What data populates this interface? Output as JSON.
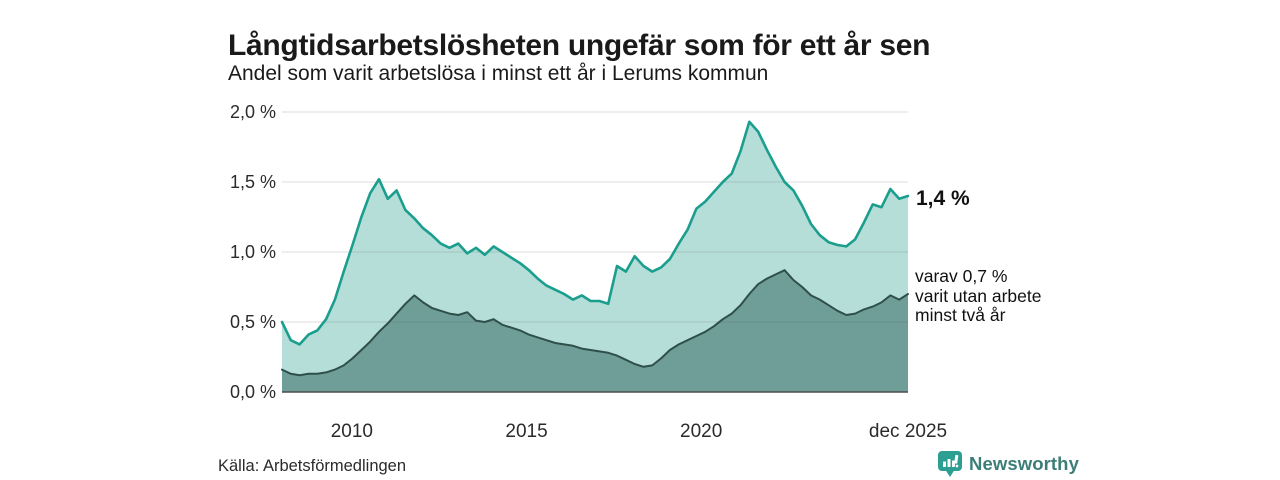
{
  "header": {
    "title": "Långtidsarbetslösheten ungefär som för ett år sen",
    "subtitle": "Andel som varit arbetslösa i minst ett år i Lerums kommun"
  },
  "annotations": {
    "value_label": "1,4 %",
    "sub_label": "varav 0,7 %\nvarit utan arbete\nminst två år"
  },
  "footer": {
    "source": "Källa: Arbetsförmedlingen",
    "brand": "Newsworthy"
  },
  "colors": {
    "line_1yr": "#1b9e8e",
    "fill_1yr": "#b6ded8",
    "line_2yr": "#2f4f4b",
    "fill_2yr": "#6f9e99",
    "gridline": "rgba(70,70,70,0.18)",
    "axis_line": "#4d4d4d",
    "brand_teal": "#3c7e77",
    "badge_teal": "#2d9f92"
  },
  "chart_data": {
    "type": "area",
    "title": "Långtidsarbetslösheten ungefär som för ett år sen",
    "subtitle": "Andel som varit arbetslösa i minst ett år i Lerums kommun",
    "unit": "percent",
    "x_axis": {
      "start": 2008.0,
      "end": 2025.92,
      "ticks": [
        {
          "label": "2010",
          "t": 2010.0
        },
        {
          "label": "2015",
          "t": 2015.0
        },
        {
          "label": "2020",
          "t": 2020.0
        },
        {
          "label": "dec 2025",
          "t": 2025.92
        }
      ]
    },
    "y_axis": {
      "min": 0.0,
      "max": 2.0,
      "ticks": [
        {
          "label": "2,0 %",
          "value": 2.0
        },
        {
          "label": "1,5 %",
          "value": 1.5
        },
        {
          "label": "1,0 %",
          "value": 1.0
        },
        {
          "label": "0,5 %",
          "value": 0.5
        },
        {
          "label": "0,0 %",
          "value": 0.0
        }
      ]
    },
    "grid": true,
    "legend": "inline-right-annotations",
    "resolution": "quarterly",
    "series": [
      {
        "name": "Andel arbetslösa minst ett år",
        "end_label": "1,4 %",
        "stroke": "#1b9e8e",
        "fill": "#b6ded8",
        "stroke_width": 2.6,
        "values": [
          0.5,
          0.37,
          0.34,
          0.41,
          0.44,
          0.52,
          0.66,
          0.86,
          1.05,
          1.25,
          1.42,
          1.52,
          1.38,
          1.44,
          1.3,
          1.24,
          1.17,
          1.12,
          1.06,
          1.03,
          1.06,
          0.99,
          1.03,
          0.98,
          1.04,
          1.0,
          0.96,
          0.92,
          0.87,
          0.81,
          0.76,
          0.73,
          0.7,
          0.66,
          0.69,
          0.65,
          0.65,
          0.63,
          0.9,
          0.86,
          0.97,
          0.9,
          0.86,
          0.89,
          0.95,
          1.06,
          1.16,
          1.31,
          1.36,
          1.43,
          1.5,
          1.56,
          1.72,
          1.93,
          1.86,
          1.73,
          1.61,
          1.5,
          1.44,
          1.33,
          1.2,
          1.12,
          1.07,
          1.05,
          1.04,
          1.09,
          1.21,
          1.34,
          1.32,
          1.45,
          1.38,
          1.4
        ]
      },
      {
        "name": "varav arbetslösa minst två år",
        "end_label": "varav 0,7 % varit utan arbete minst två år",
        "stroke": "#2f4f4b",
        "fill": "#6f9e99",
        "stroke_width": 2.0,
        "values": [
          0.16,
          0.13,
          0.12,
          0.13,
          0.13,
          0.14,
          0.16,
          0.19,
          0.24,
          0.3,
          0.36,
          0.43,
          0.49,
          0.56,
          0.63,
          0.69,
          0.64,
          0.6,
          0.58,
          0.56,
          0.55,
          0.57,
          0.51,
          0.5,
          0.52,
          0.48,
          0.46,
          0.44,
          0.41,
          0.39,
          0.37,
          0.35,
          0.34,
          0.33,
          0.31,
          0.3,
          0.29,
          0.28,
          0.26,
          0.23,
          0.2,
          0.18,
          0.19,
          0.24,
          0.3,
          0.34,
          0.37,
          0.4,
          0.43,
          0.47,
          0.52,
          0.56,
          0.62,
          0.7,
          0.77,
          0.81,
          0.84,
          0.87,
          0.8,
          0.75,
          0.69,
          0.66,
          0.62,
          0.58,
          0.55,
          0.56,
          0.59,
          0.61,
          0.64,
          0.69,
          0.66,
          0.7
        ]
      }
    ]
  }
}
